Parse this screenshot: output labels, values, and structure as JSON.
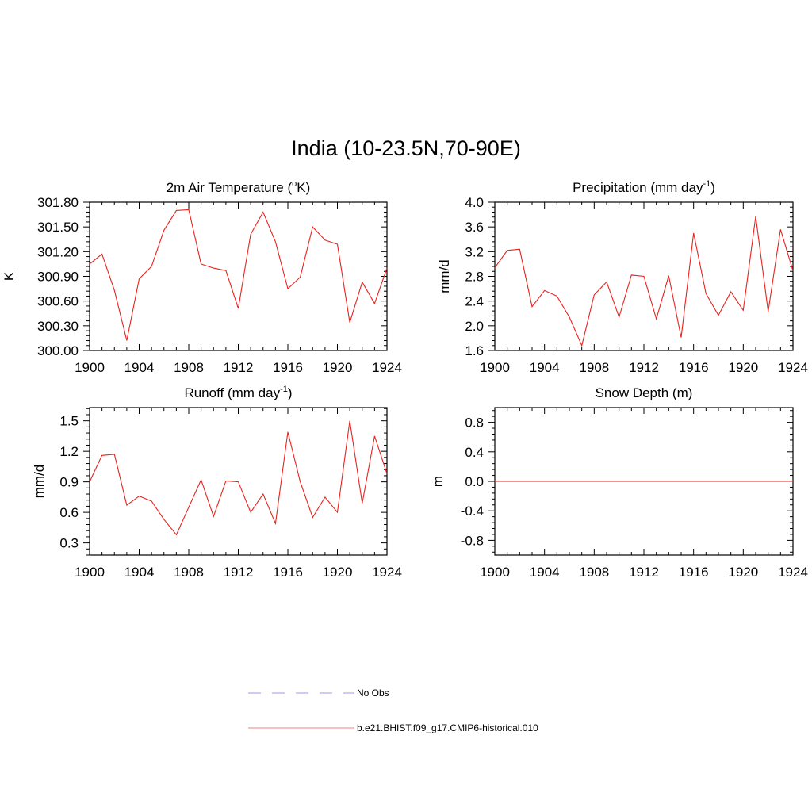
{
  "page": {
    "title": "India (10-23.5N,70-90E)"
  },
  "chart_data": [
    {
      "type": "line",
      "title": "2m Air Temperature (",
      "title_sup": "o",
      "title_tail": "K)",
      "ylabel": "K",
      "xlabel": "",
      "xlim": [
        1900,
        1924
      ],
      "ylim": [
        300.0,
        301.8
      ],
      "xticks": [
        1900,
        1904,
        1908,
        1912,
        1916,
        1920,
        1924
      ],
      "yticks": [
        300.0,
        300.3,
        300.6,
        300.9,
        301.2,
        301.5,
        301.8
      ],
      "ytick_labels": [
        "300.00",
        "300.30",
        "300.60",
        "300.90",
        "301.20",
        "301.50",
        "301.80"
      ],
      "series": [
        {
          "color": "#e8231e",
          "x": [
            1900,
            1901,
            1902,
            1903,
            1904,
            1905,
            1906,
            1907,
            1908,
            1909,
            1910,
            1911,
            1912,
            1913,
            1914,
            1915,
            1916,
            1917,
            1918,
            1919,
            1920,
            1921,
            1922,
            1923,
            1924
          ],
          "y": [
            301.05,
            301.17,
            300.73,
            300.12,
            300.87,
            301.02,
            301.46,
            301.7,
            301.71,
            301.05,
            301.0,
            300.97,
            300.51,
            301.41,
            301.68,
            301.32,
            300.75,
            300.89,
            301.5,
            301.34,
            301.29,
            300.34,
            300.83,
            300.57,
            301.0
          ]
        }
      ]
    },
    {
      "type": "line",
      "title": "Precipitation (mm day",
      "title_sup": "-1",
      "title_tail": ")",
      "ylabel": "mm/d",
      "xlabel": "",
      "xlim": [
        1900,
        1924
      ],
      "ylim": [
        1.6,
        4.0
      ],
      "xticks": [
        1900,
        1904,
        1908,
        1912,
        1916,
        1920,
        1924
      ],
      "yticks": [
        1.6,
        2.0,
        2.4,
        2.8,
        3.2,
        3.6,
        4.0
      ],
      "ytick_labels": [
        "1.6",
        "2.0",
        "2.4",
        "2.8",
        "3.2",
        "3.6",
        "4.0"
      ],
      "series": [
        {
          "color": "#e8231e",
          "x": [
            1900,
            1901,
            1902,
            1903,
            1904,
            1905,
            1906,
            1907,
            1908,
            1909,
            1910,
            1911,
            1912,
            1913,
            1914,
            1915,
            1916,
            1917,
            1918,
            1919,
            1920,
            1921,
            1922,
            1923,
            1924
          ],
          "y": [
            2.94,
            3.22,
            3.24,
            2.31,
            2.57,
            2.48,
            2.14,
            1.68,
            2.5,
            2.71,
            2.14,
            2.82,
            2.8,
            2.11,
            2.81,
            1.81,
            3.5,
            2.52,
            2.17,
            2.55,
            2.25,
            3.77,
            2.23,
            3.56,
            2.89
          ]
        }
      ]
    },
    {
      "type": "line",
      "title": "Runoff (mm day",
      "title_sup": "-1",
      "title_tail": ")",
      "ylabel": "mm/d",
      "xlabel": "",
      "xlim": [
        1900,
        1924
      ],
      "ylim": [
        0.18,
        1.63
      ],
      "xticks": [
        1900,
        1904,
        1908,
        1912,
        1916,
        1920,
        1924
      ],
      "yticks": [
        0.3,
        0.6,
        0.9,
        1.2,
        1.5
      ],
      "ytick_labels": [
        "0.3",
        "0.6",
        "0.9",
        "1.2",
        "1.5"
      ],
      "series": [
        {
          "color": "#e8231e",
          "x": [
            1900,
            1901,
            1902,
            1903,
            1904,
            1905,
            1906,
            1907,
            1908,
            1909,
            1910,
            1911,
            1912,
            1913,
            1914,
            1915,
            1916,
            1917,
            1918,
            1919,
            1920,
            1921,
            1922,
            1923,
            1924
          ],
          "y": [
            0.9,
            1.16,
            1.17,
            0.67,
            0.76,
            0.71,
            0.53,
            0.38,
            0.65,
            0.92,
            0.56,
            0.91,
            0.9,
            0.6,
            0.78,
            0.49,
            1.39,
            0.9,
            0.55,
            0.75,
            0.6,
            1.5,
            0.69,
            1.35,
            0.98
          ]
        }
      ]
    },
    {
      "type": "line",
      "title": "Snow Depth (m)",
      "title_sup": "",
      "title_tail": "",
      "ylabel": "m",
      "xlabel": "",
      "xlim": [
        1900,
        1924
      ],
      "ylim": [
        -1.0,
        1.0
      ],
      "xticks": [
        1900,
        1904,
        1908,
        1912,
        1916,
        1920,
        1924
      ],
      "yticks": [
        -0.8,
        -0.4,
        0.0,
        0.4,
        0.8
      ],
      "ytick_labels": [
        "-0.8",
        "-0.4",
        "0.0",
        "0.4",
        "0.8"
      ],
      "series": [
        {
          "color": "#e8231e",
          "x": [
            1900,
            1924
          ],
          "y": [
            0.0,
            0.0
          ]
        }
      ]
    }
  ],
  "legend": {
    "entries": [
      {
        "label": "No Obs",
        "color": "#9999ee",
        "style": "dashed"
      },
      {
        "label": "b.e21.BHIST.f09_g17.CMIP6-historical.010",
        "color": "#f08080",
        "style": "solid"
      }
    ]
  }
}
